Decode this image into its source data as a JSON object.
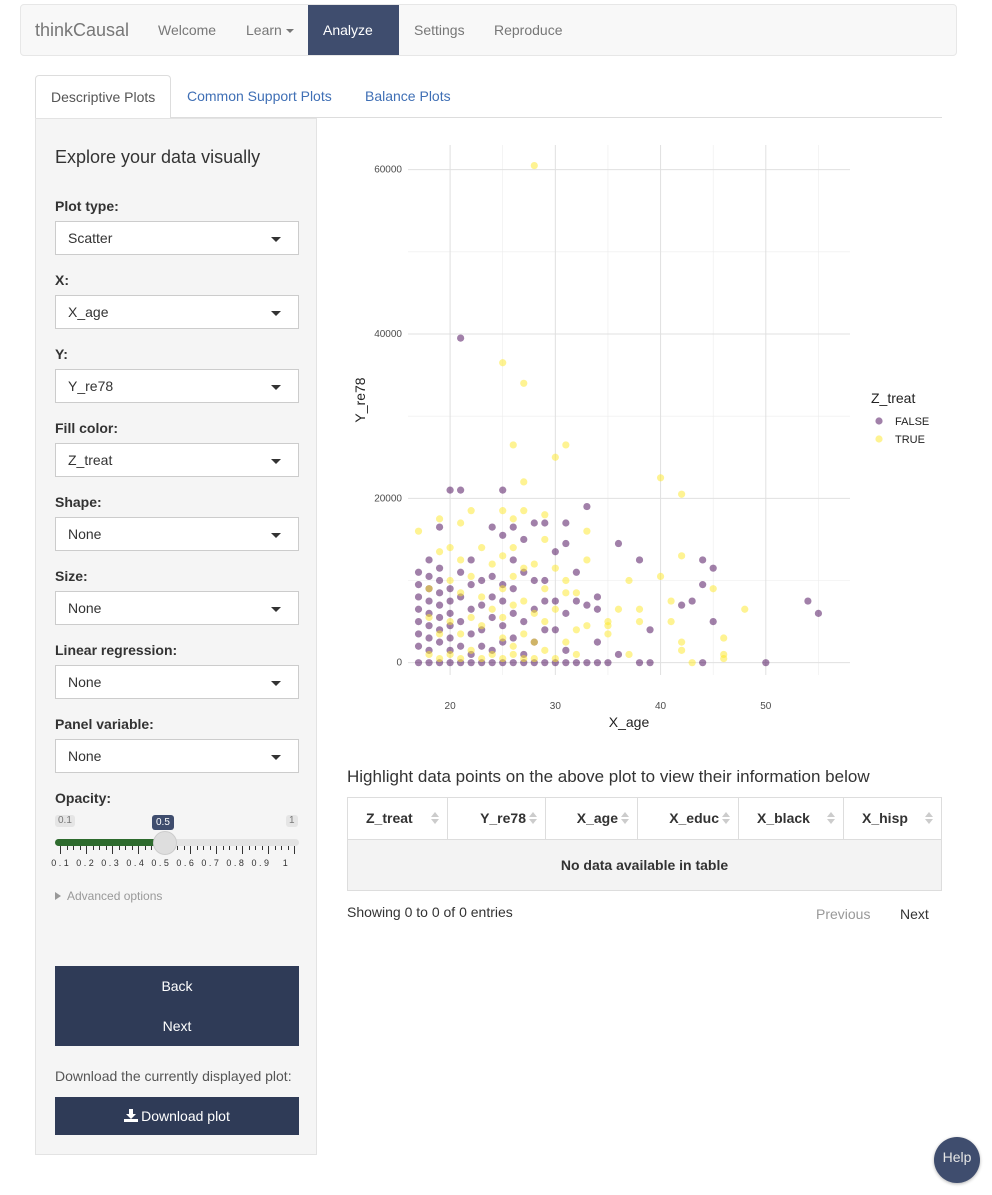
{
  "navbar": {
    "brand": "thinkCausal",
    "items": [
      {
        "label": "Welcome",
        "dropdown": false,
        "active": false
      },
      {
        "label": "Learn",
        "dropdown": true,
        "active": false
      },
      {
        "label": "Analyze",
        "dropdown": true,
        "active": true
      },
      {
        "label": "Settings",
        "dropdown": false,
        "active": false
      },
      {
        "label": "Reproduce",
        "dropdown": false,
        "active": false
      }
    ]
  },
  "tabs": [
    {
      "label": "Descriptive Plots",
      "active": true
    },
    {
      "label": "Common Support Plots",
      "active": false
    },
    {
      "label": "Balance Plots",
      "active": false
    }
  ],
  "sidebar": {
    "title": "Explore your data visually",
    "fields": [
      {
        "label": "Plot type:",
        "value": "Scatter"
      },
      {
        "label": "X:",
        "value": "X_age"
      },
      {
        "label": "Y:",
        "value": "Y_re78"
      },
      {
        "label": "Fill color:",
        "value": "Z_treat"
      },
      {
        "label": "Shape:",
        "value": "None"
      },
      {
        "label": "Size:",
        "value": "None"
      },
      {
        "label": "Linear regression:",
        "value": "None"
      },
      {
        "label": "Panel variable:",
        "value": "None"
      }
    ],
    "opacity": {
      "label": "Opacity:",
      "min_label": "0.1",
      "max_label": "1",
      "value_label": "0.5",
      "value": 0.5,
      "ticks": [
        "0.1",
        "0.2",
        "0.3",
        "0.4",
        "0.5",
        "0.6",
        "0.7",
        "0.8",
        "0.9",
        "1"
      ]
    },
    "advanced": "Advanced options",
    "back": "Back",
    "next": "Next",
    "download_text": "Download the currently displayed plot:",
    "download_button": "Download plot"
  },
  "chart_data": {
    "type": "scatter",
    "xlabel": "X_age",
    "ylabel": "Y_re78",
    "xticks": [
      20,
      30,
      40,
      50
    ],
    "yticks": [
      0,
      20000,
      40000,
      60000
    ],
    "xlim": [
      16,
      58
    ],
    "ylim": [
      -1500,
      63000
    ],
    "legend": {
      "title": "Z_treat",
      "position": "right"
    },
    "grid": true,
    "colors": {
      "FALSE": "#440154",
      "TRUE": "#fde725"
    },
    "opacity": 0.5,
    "series": [
      {
        "name": "FALSE",
        "points": [
          [
            17,
            0
          ],
          [
            17,
            2000
          ],
          [
            17,
            3500
          ],
          [
            17,
            5000
          ],
          [
            17,
            6500
          ],
          [
            17,
            8000
          ],
          [
            17,
            9500
          ],
          [
            17,
            11000
          ],
          [
            18,
            0
          ],
          [
            18,
            1500
          ],
          [
            18,
            3000
          ],
          [
            18,
            4500
          ],
          [
            18,
            6000
          ],
          [
            18,
            7500
          ],
          [
            18,
            9000
          ],
          [
            18,
            10500
          ],
          [
            18,
            12500
          ],
          [
            19,
            0
          ],
          [
            19,
            2500
          ],
          [
            19,
            4000
          ],
          [
            19,
            5500
          ],
          [
            19,
            7000
          ],
          [
            19,
            8500
          ],
          [
            19,
            10000
          ],
          [
            19,
            11500
          ],
          [
            19,
            16500
          ],
          [
            20,
            0
          ],
          [
            20,
            1500
          ],
          [
            20,
            3000
          ],
          [
            20,
            4500
          ],
          [
            20,
            6000
          ],
          [
            20,
            7500
          ],
          [
            20,
            9000
          ],
          [
            20,
            21000
          ],
          [
            21,
            0
          ],
          [
            21,
            2000
          ],
          [
            21,
            5000
          ],
          [
            21,
            8000
          ],
          [
            21,
            11000
          ],
          [
            21,
            21000
          ],
          [
            21,
            39500
          ],
          [
            22,
            0
          ],
          [
            22,
            1000
          ],
          [
            22,
            3500
          ],
          [
            22,
            6500
          ],
          [
            22,
            9500
          ],
          [
            22,
            12500
          ],
          [
            23,
            0
          ],
          [
            23,
            2000
          ],
          [
            23,
            4000
          ],
          [
            23,
            7000
          ],
          [
            23,
            10000
          ],
          [
            24,
            0
          ],
          [
            24,
            1500
          ],
          [
            24,
            5500
          ],
          [
            24,
            8000
          ],
          [
            24,
            10500
          ],
          [
            24,
            16500
          ],
          [
            25,
            0
          ],
          [
            25,
            2500
          ],
          [
            25,
            4500
          ],
          [
            25,
            7500
          ],
          [
            25,
            9500
          ],
          [
            25,
            15500
          ],
          [
            25,
            21000
          ],
          [
            26,
            0
          ],
          [
            26,
            3000
          ],
          [
            26,
            6000
          ],
          [
            26,
            9000
          ],
          [
            26,
            12500
          ],
          [
            26,
            16500
          ],
          [
            27,
            0
          ],
          [
            27,
            1000
          ],
          [
            27,
            5000
          ],
          [
            27,
            11000
          ],
          [
            27,
            15000
          ],
          [
            28,
            0
          ],
          [
            28,
            2500
          ],
          [
            28,
            6500
          ],
          [
            28,
            10000
          ],
          [
            28,
            17000
          ],
          [
            29,
            0
          ],
          [
            29,
            4000
          ],
          [
            29,
            7500
          ],
          [
            29,
            10000
          ],
          [
            29,
            17000
          ],
          [
            30,
            0
          ],
          [
            30,
            4000
          ],
          [
            30,
            7500
          ],
          [
            30,
            13500
          ],
          [
            31,
            0
          ],
          [
            31,
            1500
          ],
          [
            31,
            6000
          ],
          [
            31,
            14500
          ],
          [
            31,
            17000
          ],
          [
            32,
            0
          ],
          [
            32,
            7500
          ],
          [
            32,
            11000
          ],
          [
            33,
            0
          ],
          [
            33,
            7000
          ],
          [
            33,
            19000
          ],
          [
            34,
            0
          ],
          [
            34,
            2500
          ],
          [
            34,
            6500
          ],
          [
            34,
            8000
          ],
          [
            35,
            0
          ],
          [
            36,
            1000
          ],
          [
            36,
            14500
          ],
          [
            38,
            0
          ],
          [
            38,
            12500
          ],
          [
            39,
            0
          ],
          [
            39,
            4000
          ],
          [
            42,
            7000
          ],
          [
            43,
            7500
          ],
          [
            44,
            0
          ],
          [
            44,
            9500
          ],
          [
            44,
            12500
          ],
          [
            45,
            5000
          ],
          [
            45,
            11500
          ],
          [
            50,
            0
          ],
          [
            54,
            7500
          ],
          [
            55,
            6000
          ]
        ]
      },
      {
        "name": "TRUE",
        "points": [
          [
            17,
            16000
          ],
          [
            18,
            1000
          ],
          [
            18,
            5500
          ],
          [
            18,
            9000
          ],
          [
            19,
            500
          ],
          [
            19,
            3500
          ],
          [
            19,
            13500
          ],
          [
            19,
            17500
          ],
          [
            20,
            1000
          ],
          [
            20,
            5000
          ],
          [
            20,
            10000
          ],
          [
            20,
            14000
          ],
          [
            21,
            500
          ],
          [
            21,
            3500
          ],
          [
            21,
            8500
          ],
          [
            21,
            12500
          ],
          [
            21,
            17000
          ],
          [
            22,
            1500
          ],
          [
            22,
            5500
          ],
          [
            22,
            10500
          ],
          [
            22,
            18500
          ],
          [
            23,
            500
          ],
          [
            23,
            4500
          ],
          [
            23,
            8000
          ],
          [
            23,
            14000
          ],
          [
            24,
            1000
          ],
          [
            24,
            6500
          ],
          [
            24,
            12000
          ],
          [
            25,
            500
          ],
          [
            25,
            3000
          ],
          [
            25,
            5500
          ],
          [
            25,
            9000
          ],
          [
            25,
            13000
          ],
          [
            25,
            18500
          ],
          [
            25,
            36500
          ],
          [
            26,
            1000
          ],
          [
            26,
            2000
          ],
          [
            26,
            7000
          ],
          [
            26,
            10500
          ],
          [
            26,
            14000
          ],
          [
            26,
            17500
          ],
          [
            26,
            26500
          ],
          [
            27,
            500
          ],
          [
            27,
            3500
          ],
          [
            27,
            7500
          ],
          [
            27,
            11500
          ],
          [
            27,
            18500
          ],
          [
            27,
            22000
          ],
          [
            27,
            34000
          ],
          [
            28,
            500
          ],
          [
            28,
            2500
          ],
          [
            28,
            6000
          ],
          [
            28,
            12000
          ],
          [
            28,
            60500
          ],
          [
            29,
            1500
          ],
          [
            29,
            5000
          ],
          [
            29,
            9000
          ],
          [
            29,
            15000
          ],
          [
            29,
            18000
          ],
          [
            30,
            500
          ],
          [
            30,
            6500
          ],
          [
            30,
            11500
          ],
          [
            30,
            25000
          ],
          [
            31,
            2500
          ],
          [
            31,
            8500
          ],
          [
            31,
            10000
          ],
          [
            31,
            26500
          ],
          [
            32,
            1000
          ],
          [
            32,
            4000
          ],
          [
            32,
            8500
          ],
          [
            33,
            4500
          ],
          [
            33,
            12500
          ],
          [
            33,
            16000
          ],
          [
            35,
            3500
          ],
          [
            35,
            4500
          ],
          [
            35,
            5000
          ],
          [
            36,
            6500
          ],
          [
            37,
            10000
          ],
          [
            37,
            1000
          ],
          [
            38,
            5000
          ],
          [
            38,
            6500
          ],
          [
            40,
            22500
          ],
          [
            40,
            10500
          ],
          [
            41,
            5000
          ],
          [
            41,
            7500
          ],
          [
            42,
            1500
          ],
          [
            42,
            2500
          ],
          [
            42,
            13000
          ],
          [
            42,
            20500
          ],
          [
            43,
            0
          ],
          [
            45,
            9000
          ],
          [
            46,
            500
          ],
          [
            46,
            1000
          ],
          [
            46,
            3000
          ],
          [
            48,
            6500
          ]
        ]
      }
    ]
  },
  "table": {
    "title": "Highlight data points on the above plot to view their information below",
    "columns": [
      "Z_treat",
      "Y_re78",
      "X_age",
      "X_educ",
      "X_black",
      "X_hisp"
    ],
    "empty_message": "No data available in table",
    "info": "Showing 0 to 0 of 0 entries",
    "previous": "Previous",
    "next": "Next"
  },
  "help": "Help"
}
